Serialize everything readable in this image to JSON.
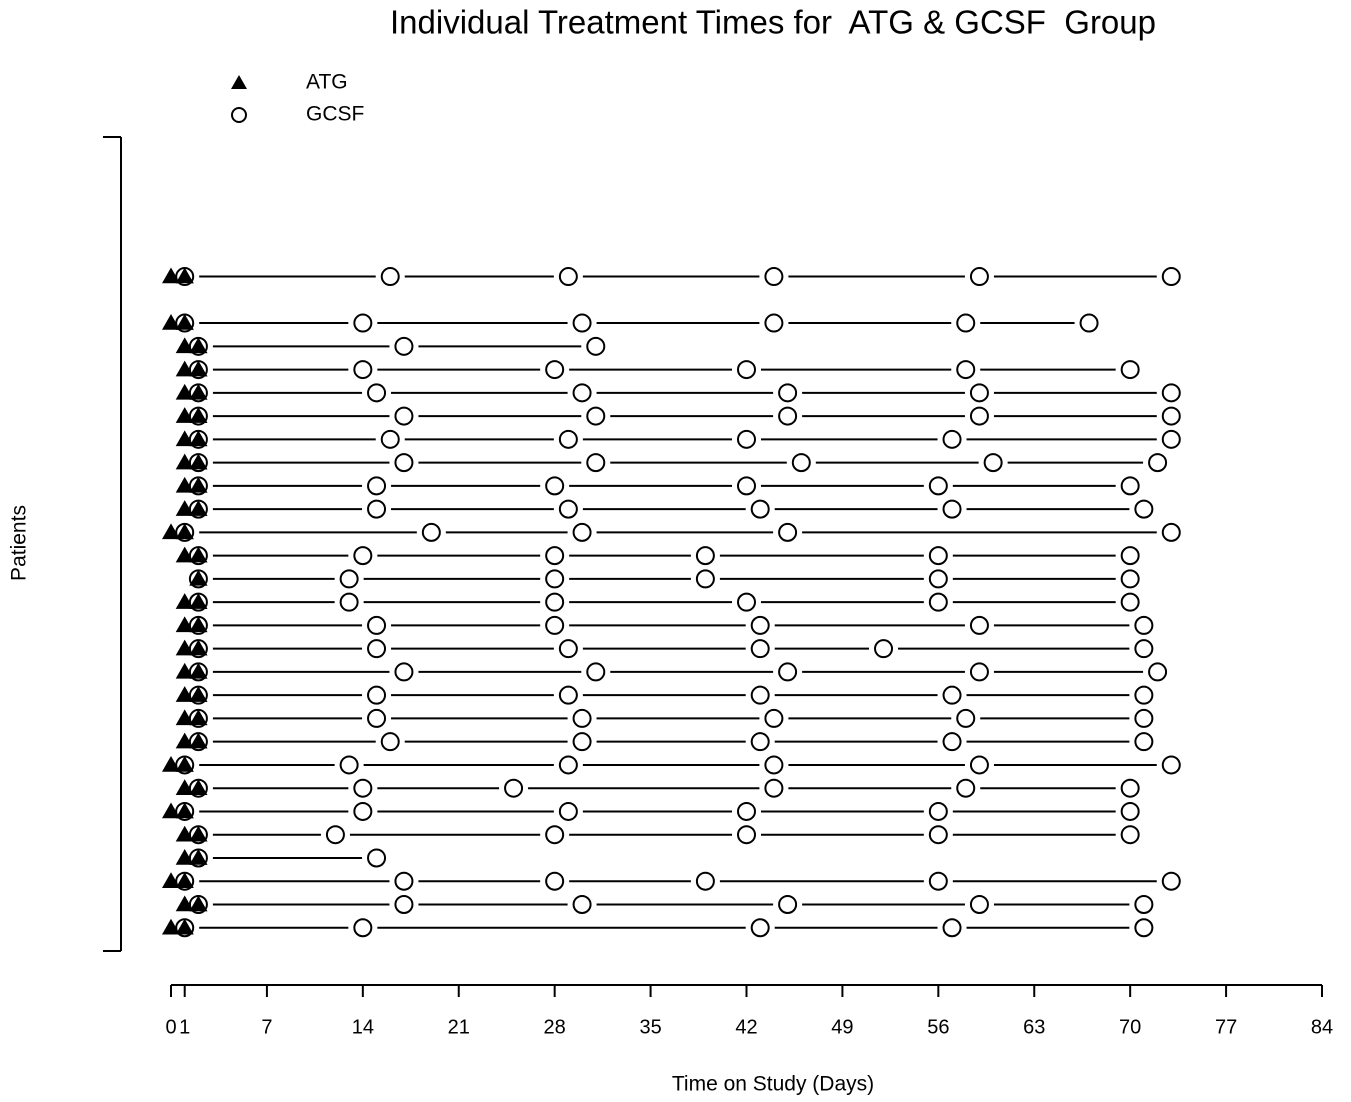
{
  "chart_data": {
    "type": "timeline",
    "title": "Individual Treatment Times for  ATG & GCSF  Group",
    "xlabel": "Time on Study (Days)",
    "ylabel": "Patients",
    "xlim": [
      0,
      84
    ],
    "xticks": [
      0,
      1,
      7,
      14,
      21,
      28,
      35,
      42,
      49,
      56,
      63,
      70,
      77,
      84
    ],
    "ylim": [
      0,
      35
    ],
    "legend": "topleft",
    "series": [
      {
        "name": "ATG",
        "color": "#000000",
        "marker": "triangle"
      },
      {
        "name": "GCSF",
        "color": "#000000",
        "marker": "circle"
      }
    ],
    "patients": [
      {
        "y": 29,
        "atg": [
          0,
          1
        ],
        "gcsf": [
          1,
          16,
          29,
          44,
          59,
          73
        ]
      },
      {
        "y": 27,
        "atg": [
          0,
          1
        ],
        "gcsf": [
          1,
          14,
          30,
          44,
          58,
          67
        ]
      },
      {
        "y": 26,
        "atg": [
          1,
          2
        ],
        "gcsf": [
          2,
          17,
          31
        ]
      },
      {
        "y": 25,
        "atg": [
          1,
          2
        ],
        "gcsf": [
          2,
          14,
          28,
          42,
          58,
          70
        ]
      },
      {
        "y": 24,
        "atg": [
          1,
          2
        ],
        "gcsf": [
          2,
          15,
          30,
          45,
          59,
          73
        ]
      },
      {
        "y": 23,
        "atg": [
          1,
          2
        ],
        "gcsf": [
          2,
          17,
          31,
          45,
          59,
          73
        ]
      },
      {
        "y": 22,
        "atg": [
          1,
          2
        ],
        "gcsf": [
          2,
          16,
          29,
          42,
          57,
          73
        ]
      },
      {
        "y": 21,
        "atg": [
          1,
          2
        ],
        "gcsf": [
          2,
          17,
          31,
          46,
          60,
          72
        ]
      },
      {
        "y": 20,
        "atg": [
          1,
          2
        ],
        "gcsf": [
          2,
          15,
          28,
          42,
          56,
          70
        ]
      },
      {
        "y": 19,
        "atg": [
          1,
          2
        ],
        "gcsf": [
          2,
          15,
          29,
          43,
          57,
          71
        ]
      },
      {
        "y": 18,
        "atg": [
          0,
          1
        ],
        "gcsf": [
          1,
          19,
          30,
          45,
          73
        ]
      },
      {
        "y": 17,
        "atg": [
          1,
          2
        ],
        "gcsf": [
          2,
          14,
          28,
          39,
          56,
          70
        ]
      },
      {
        "y": 16,
        "atg": [
          2
        ],
        "gcsf": [
          2,
          13,
          28,
          39,
          56,
          70
        ]
      },
      {
        "y": 15,
        "atg": [
          1,
          2
        ],
        "gcsf": [
          2,
          13,
          28,
          42,
          56,
          70
        ]
      },
      {
        "y": 14,
        "atg": [
          1,
          2
        ],
        "gcsf": [
          2,
          15,
          28,
          43,
          59,
          71
        ]
      },
      {
        "y": 13,
        "atg": [
          1,
          2
        ],
        "gcsf": [
          2,
          15,
          29,
          43,
          52,
          71
        ]
      },
      {
        "y": 12,
        "atg": [
          1,
          2
        ],
        "gcsf": [
          2,
          17,
          31,
          45,
          59,
          72
        ]
      },
      {
        "y": 11,
        "atg": [
          1,
          2
        ],
        "gcsf": [
          2,
          15,
          29,
          43,
          57,
          71
        ]
      },
      {
        "y": 10,
        "atg": [
          1,
          2
        ],
        "gcsf": [
          2,
          15,
          30,
          44,
          58,
          71
        ]
      },
      {
        "y": 9,
        "atg": [
          1,
          2
        ],
        "gcsf": [
          2,
          16,
          30,
          43,
          57,
          71
        ]
      },
      {
        "y": 8,
        "atg": [
          0,
          1
        ],
        "gcsf": [
          1,
          13,
          29,
          44,
          59,
          73
        ]
      },
      {
        "y": 7,
        "atg": [
          1,
          2
        ],
        "gcsf": [
          2,
          14,
          25,
          44,
          58,
          70
        ]
      },
      {
        "y": 6,
        "atg": [
          0,
          1
        ],
        "gcsf": [
          1,
          14,
          29,
          42,
          56,
          70
        ]
      },
      {
        "y": 5,
        "atg": [
          1,
          2
        ],
        "gcsf": [
          2,
          12,
          28,
          42,
          56,
          70
        ]
      },
      {
        "y": 4,
        "atg": [
          1,
          2
        ],
        "gcsf": [
          2,
          15
        ]
      },
      {
        "y": 3,
        "atg": [
          0,
          1
        ],
        "gcsf": [
          1,
          17,
          28,
          39,
          56,
          73
        ]
      },
      {
        "y": 2,
        "atg": [
          1,
          2
        ],
        "gcsf": [
          2,
          17,
          30,
          45,
          59,
          71
        ]
      },
      {
        "y": 1,
        "atg": [
          0,
          1
        ],
        "gcsf": [
          1,
          14,
          43,
          57,
          71
        ]
      }
    ]
  }
}
